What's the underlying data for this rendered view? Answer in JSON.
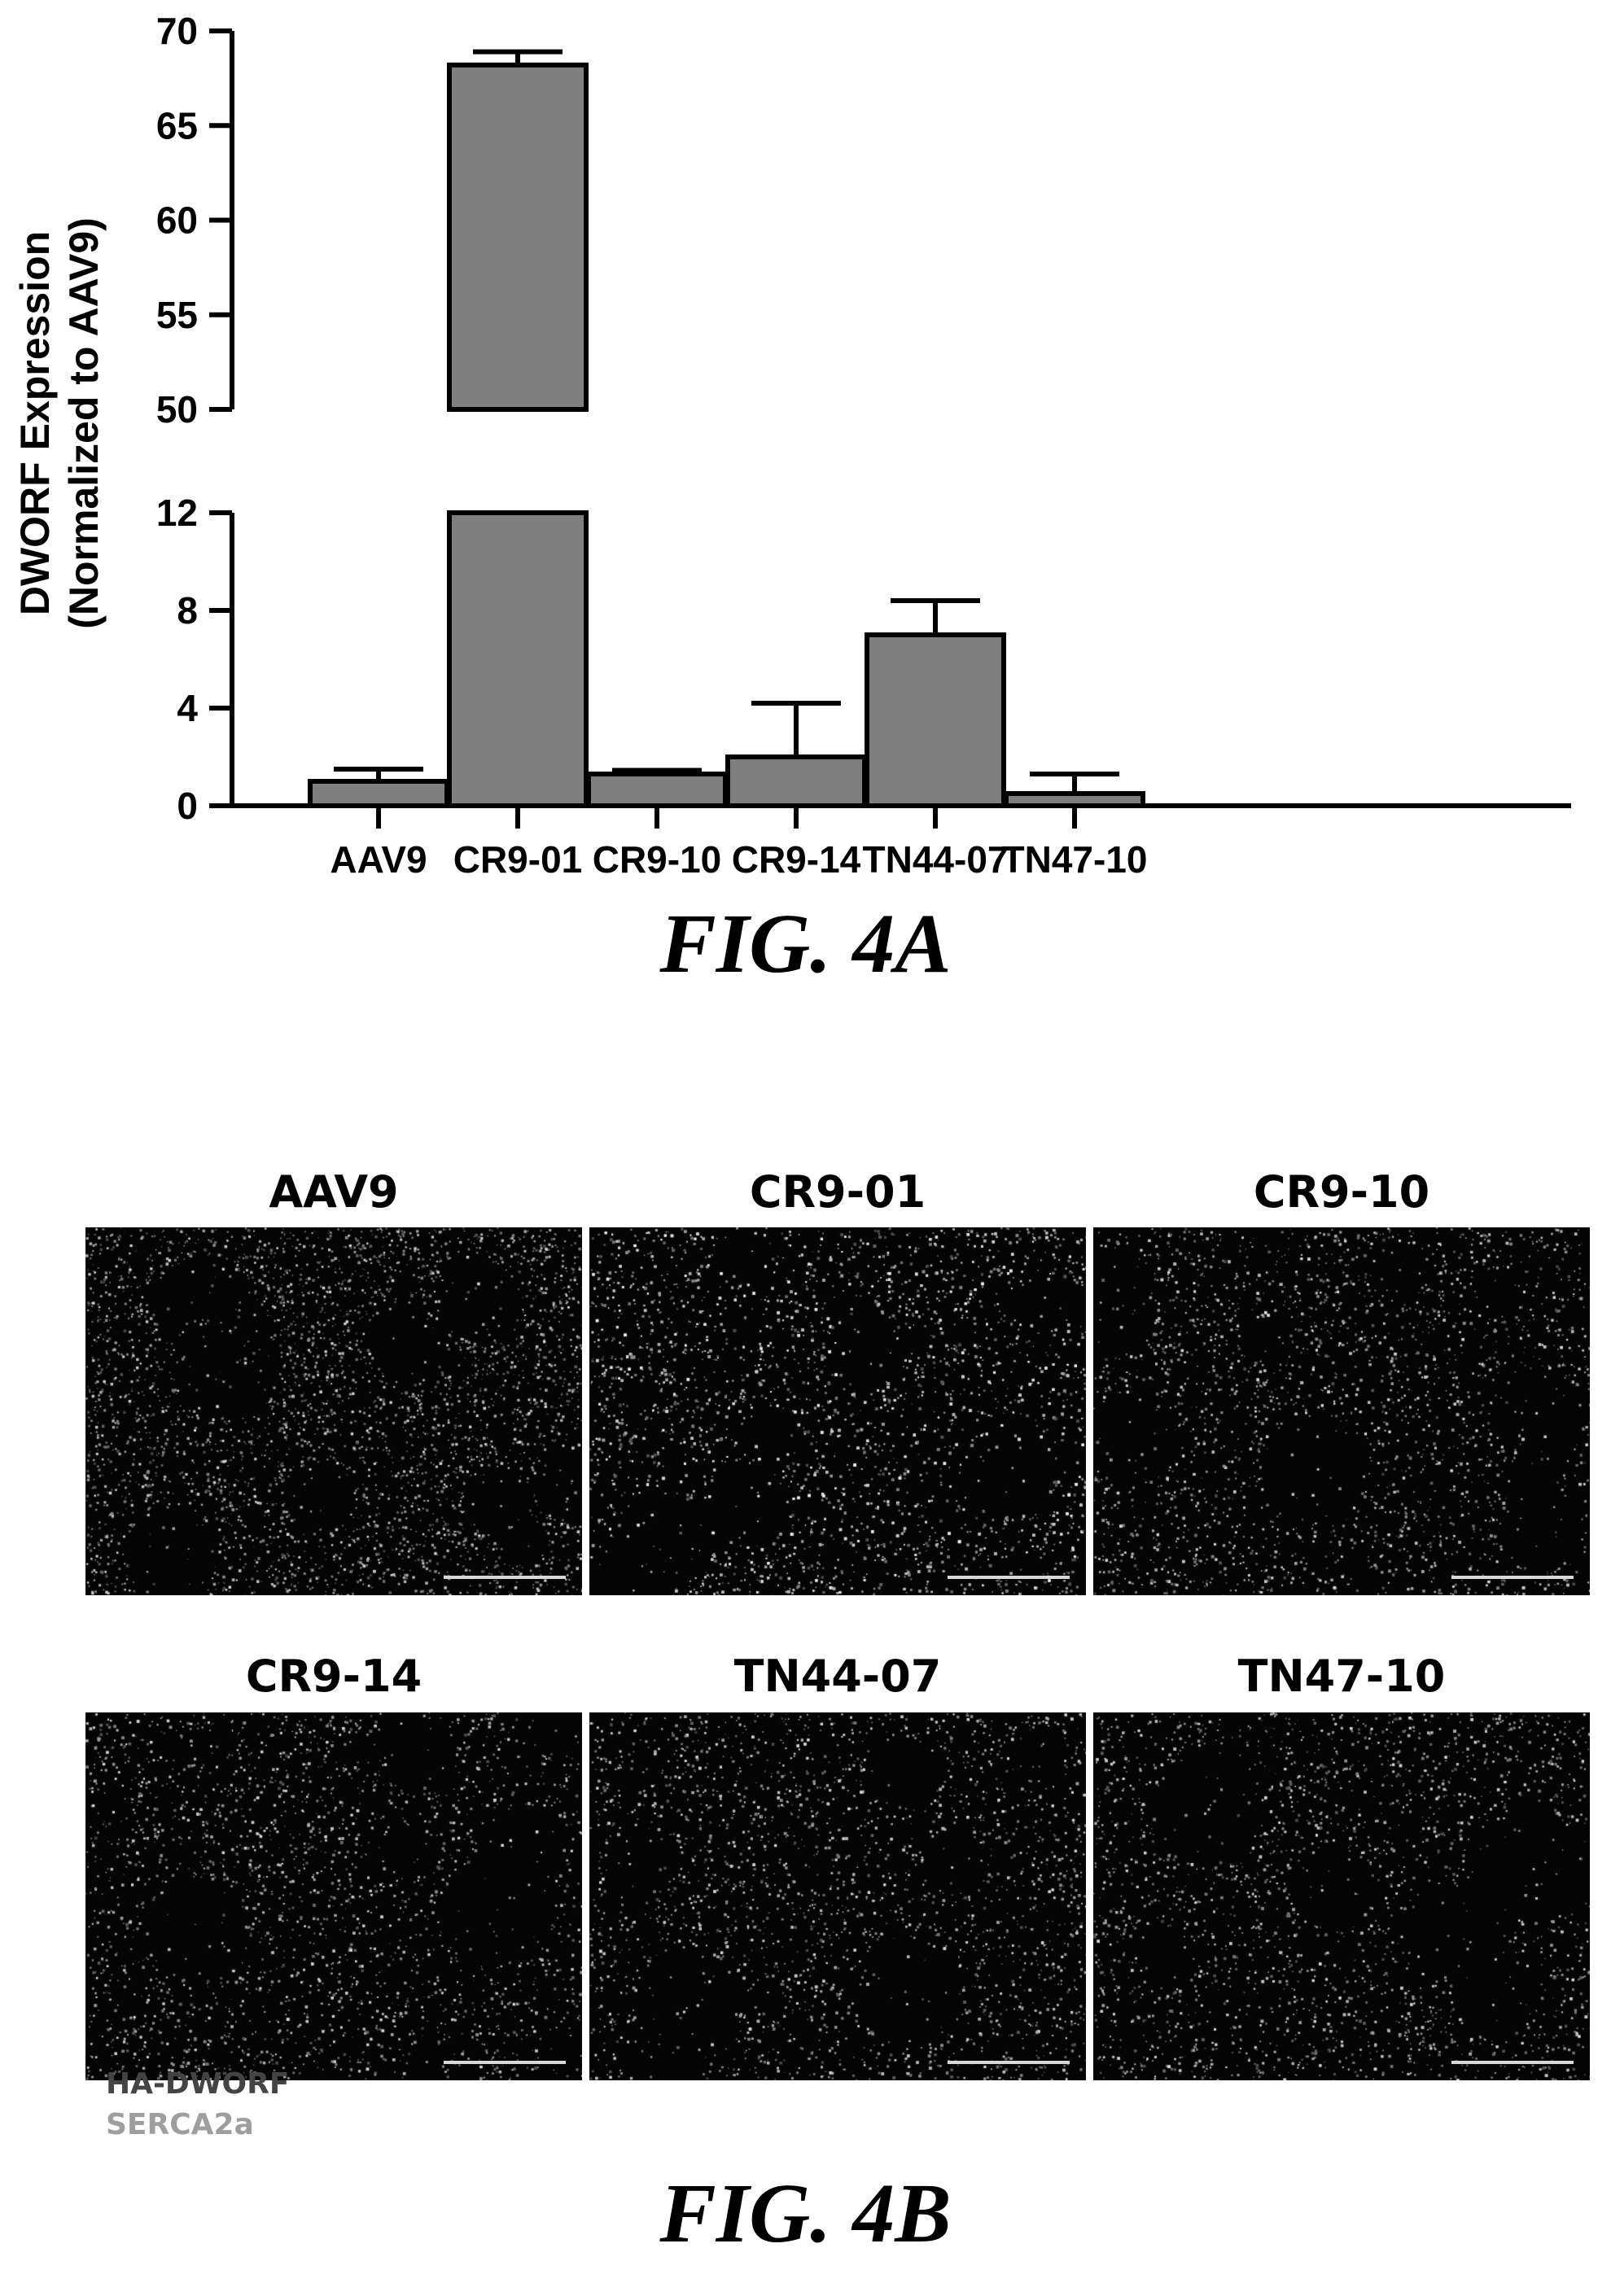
{
  "chart_data": {
    "type": "bar",
    "ylabel": [
      "DWORF Expression",
      "(Normalized to AAV9)"
    ],
    "categories": [
      "AAV9",
      "CR9-01",
      "CR9-10",
      "CR9-14",
      "TN44-07",
      "TN47-10"
    ],
    "values": [
      1.0,
      68.2,
      1.3,
      2.0,
      7.0,
      0.5
    ],
    "errors": [
      0.5,
      0.7,
      0.15,
      2.2,
      1.4,
      0.8
    ],
    "axis_break": true,
    "lower_ylim": [
      0,
      12
    ],
    "upper_ylim": [
      50,
      70
    ],
    "lower_ticks": [
      "0",
      "4",
      "8",
      "12"
    ],
    "upper_ticks": [
      "50",
      "55",
      "60",
      "65",
      "70"
    ],
    "bar_color": "#7f7f7f",
    "grid": false
  },
  "captions": {
    "fig_a": "FIG. 4A",
    "fig_b": "FIG. 4B"
  },
  "panels": [
    {
      "label": "AAV9",
      "density": 0.85
    },
    {
      "label": "CR9-01",
      "density": 1.35
    },
    {
      "label": "CR9-10",
      "density": 0.85
    },
    {
      "label": "CR9-14",
      "density": 0.75
    },
    {
      "label": "TN44-07",
      "density": 0.85
    },
    {
      "label": "TN47-10",
      "density": 0.85
    }
  ],
  "legend": [
    {
      "label": "HA-DWORF",
      "color": "#444444"
    },
    {
      "label": "SERCA2a",
      "color": "#9e9e9e"
    }
  ]
}
